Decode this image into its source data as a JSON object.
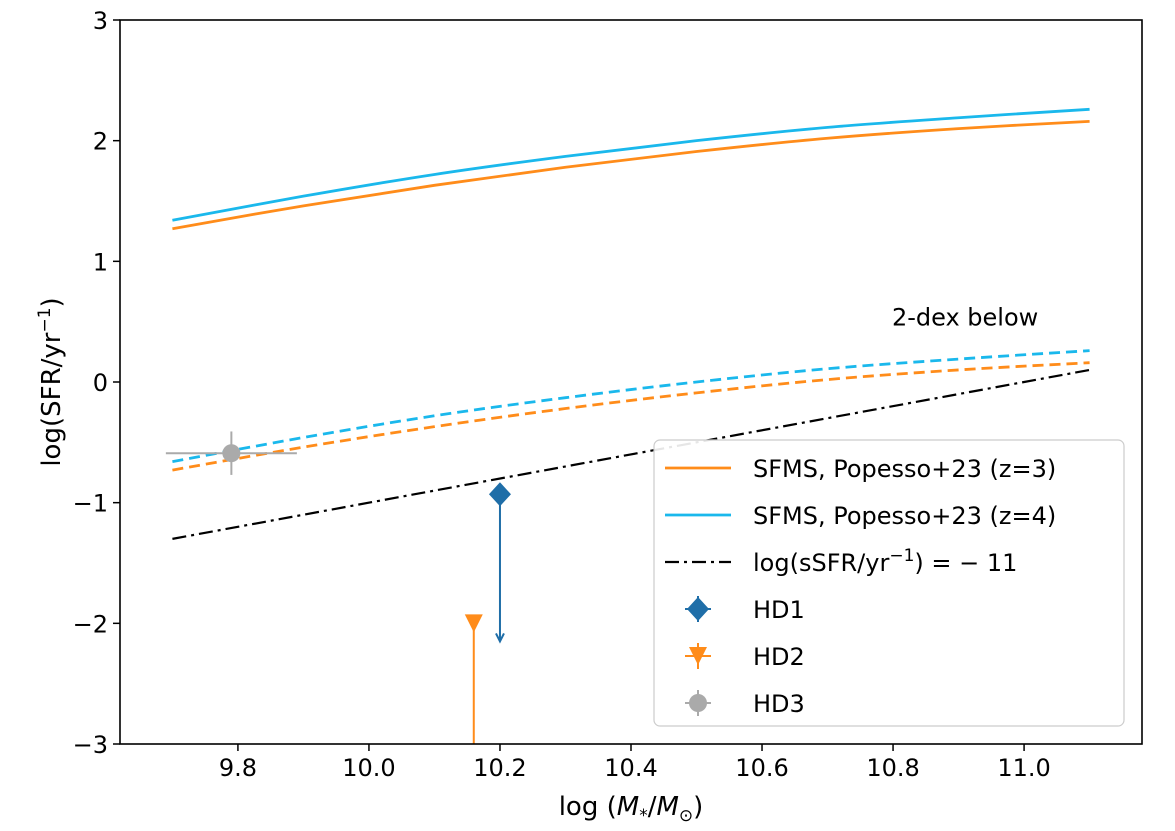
{
  "chart_data": {
    "type": "line",
    "title": "",
    "xlabel": {
      "prefix": "log (",
      "main": "M",
      "sub1": "*",
      "mid": "/",
      "main2": "M",
      "sub2": "⊙",
      "suffix": ")"
    },
    "ylabel": {
      "prefix": "log(SFR/yr",
      "sup": "−1",
      "suffix": ")"
    },
    "xlim": [
      9.62,
      11.18
    ],
    "ylim": [
      -3,
      3
    ],
    "xticks": [
      "9.8",
      "10.0",
      "10.2",
      "10.4",
      "10.6",
      "10.8",
      "11.0"
    ],
    "xtick_values": [
      9.8,
      10.0,
      10.2,
      10.4,
      10.6,
      10.8,
      11.0
    ],
    "yticks": [
      "−3",
      "−2",
      "−1",
      "0",
      "1",
      "2",
      "3"
    ],
    "ytick_values": [
      -3,
      -2,
      -1,
      0,
      1,
      2,
      3
    ],
    "grid": false,
    "legend_position": "lower-right",
    "colors": {
      "orange": "#ff8c1a",
      "cyan": "#1ab8ec",
      "black": "#000000",
      "hd1": "#1f6ea8",
      "hd2": "#ff8c1a",
      "hd3": "#aaaaaa"
    },
    "series": [
      {
        "name": "SFMS, Popesso+23 (z=3)",
        "style": "solid",
        "color": "orange",
        "x": [
          9.7,
          9.9,
          10.1,
          10.3,
          10.5,
          10.7,
          10.9,
          11.1
        ],
        "y": [
          1.27,
          1.46,
          1.63,
          1.78,
          1.91,
          2.02,
          2.1,
          2.16
        ]
      },
      {
        "name": "SFMS, Popesso+23 (z=4)",
        "style": "solid",
        "color": "cyan",
        "x": [
          9.7,
          9.9,
          10.1,
          10.3,
          10.5,
          10.7,
          10.9,
          11.1
        ],
        "y": [
          1.34,
          1.54,
          1.72,
          1.87,
          2.0,
          2.11,
          2.19,
          2.26
        ]
      },
      {
        "style": "dashed",
        "color": "orange",
        "x": [
          9.7,
          9.9,
          10.1,
          10.3,
          10.5,
          10.7,
          10.9,
          11.1
        ],
        "y": [
          -0.73,
          -0.54,
          -0.37,
          -0.22,
          -0.09,
          0.02,
          0.1,
          0.16
        ]
      },
      {
        "style": "dashed",
        "color": "cyan",
        "x": [
          9.7,
          9.9,
          10.1,
          10.3,
          10.5,
          10.7,
          10.9,
          11.1
        ],
        "y": [
          -0.66,
          -0.46,
          -0.28,
          -0.13,
          0.0,
          0.11,
          0.19,
          0.26
        ]
      },
      {
        "name": "log(sSFR/yr⁻¹) = −11",
        "style": "dashdot",
        "color": "black",
        "x": [
          9.7,
          11.1
        ],
        "y": [
          -1.3,
          0.1
        ]
      }
    ],
    "points": [
      {
        "name": "HD1",
        "marker": "diamond",
        "color": "hd1",
        "x": 10.2,
        "y": -0.93,
        "xerr": 0.0,
        "yerr": 0.0,
        "upper_limit_to": -2.15
      },
      {
        "name": "HD2",
        "marker": "triangle-down",
        "color": "hd2",
        "x": 10.16,
        "y": -2.0,
        "xerr": 0.0,
        "yerr": 0.0,
        "upper_limit_to": -3.0
      },
      {
        "name": "HD3",
        "marker": "circle",
        "color": "hd3",
        "x": 9.79,
        "y": -0.59,
        "xerr": 0.1,
        "yerr": 0.18
      }
    ],
    "annotations": [
      {
        "text": "2-dex below",
        "x": 10.91,
        "y": 0.47
      }
    ],
    "legend": [
      {
        "label": "SFMS, Popesso+23 (z=3)",
        "kind": "line",
        "color": "orange"
      },
      {
        "label": "SFMS, Popesso+23 (z=4)",
        "kind": "line",
        "color": "cyan"
      },
      {
        "label": "log(sSFR/yr",
        "sup": "−1",
        "label_end": ") = − 11",
        "kind": "dashdot",
        "color": "black"
      },
      {
        "label": "HD1",
        "kind": "diamond",
        "color": "hd1"
      },
      {
        "label": "HD2",
        "kind": "triangle-down",
        "color": "hd2"
      },
      {
        "label": "HD3",
        "kind": "circle",
        "color": "hd3"
      }
    ]
  }
}
